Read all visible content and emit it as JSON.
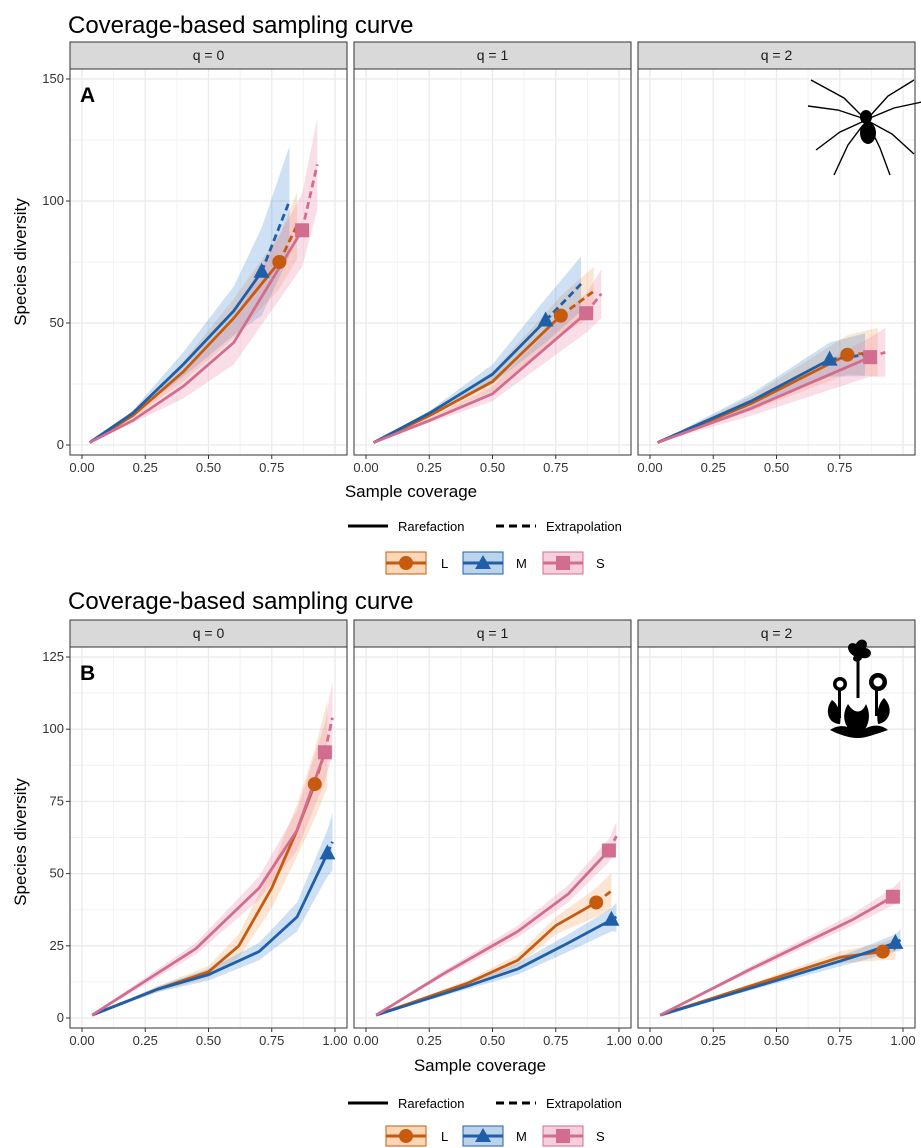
{
  "chart_data": [
    {
      "type": "line",
      "title": "Coverage-based sampling curve",
      "panel_label": "A",
      "xlabel": "Sample coverage",
      "ylabel": "Species diversity",
      "xlim": [
        0,
        1
      ],
      "ylim": [
        0,
        150
      ],
      "x_ticks": [
        "0.00",
        "0.25",
        "0.50",
        "0.75"
      ],
      "y_ticks": [
        "0",
        "50",
        "100",
        "150"
      ],
      "y_tick_values": [
        0,
        50,
        100,
        150
      ],
      "grid": true,
      "method_legend": [
        "Rarefaction",
        "Extrapolation"
      ],
      "facets": [
        {
          "label": "q = 0",
          "series": [
            {
              "name": "L",
              "rarefaction": [
                [
                  0.03,
                  1
                ],
                [
                  0.2,
                  12
                ],
                [
                  0.4,
                  30
                ],
                [
                  0.6,
                  52
                ],
                [
                  0.78,
                  75
                ]
              ],
              "extrapolation": [
                [
                  0.78,
                  75
                ],
                [
                  0.85,
                  90
                ]
              ],
              "observed": [
                0.78,
                75
              ],
              "ci_half": [
                0,
                1,
                4,
                8,
                11
              ]
            },
            {
              "name": "M",
              "rarefaction": [
                [
                  0.03,
                  1
                ],
                [
                  0.2,
                  13
                ],
                [
                  0.4,
                  33
                ],
                [
                  0.6,
                  55
                ],
                [
                  0.71,
                  71
                ]
              ],
              "extrapolation": [
                [
                  0.71,
                  71
                ],
                [
                  0.82,
                  100
                ]
              ],
              "observed": [
                0.71,
                71
              ],
              "ci_half": [
                0,
                1,
                5,
                10,
                18
              ]
            },
            {
              "name": "S",
              "rarefaction": [
                [
                  0.03,
                  1
                ],
                [
                  0.2,
                  10
                ],
                [
                  0.4,
                  24
                ],
                [
                  0.6,
                  42
                ],
                [
                  0.87,
                  88
                ]
              ],
              "extrapolation": [
                [
                  0.87,
                  88
                ],
                [
                  0.93,
                  115
                ]
              ],
              "observed": [
                0.87,
                88
              ],
              "ci_half": [
                0,
                1,
                5,
                9,
                15
              ]
            }
          ]
        },
        {
          "label": "q = 1",
          "series": [
            {
              "name": "L",
              "rarefaction": [
                [
                  0.03,
                  1
                ],
                [
                  0.25,
                  12
                ],
                [
                  0.5,
                  26
                ],
                [
                  0.77,
                  53
                ]
              ],
              "extrapolation": [
                [
                  0.77,
                  53
                ],
                [
                  0.9,
                  63
                ]
              ],
              "observed": [
                0.77,
                53
              ],
              "ci_half": [
                0,
                1,
                4,
                8
              ]
            },
            {
              "name": "M",
              "rarefaction": [
                [
                  0.03,
                  1
                ],
                [
                  0.25,
                  13
                ],
                [
                  0.5,
                  29
                ],
                [
                  0.71,
                  51
                ]
              ],
              "extrapolation": [
                [
                  0.71,
                  51
                ],
                [
                  0.85,
                  66
                ]
              ],
              "observed": [
                0.71,
                51
              ],
              "ci_half": [
                0,
                1,
                4,
                9
              ]
            },
            {
              "name": "S",
              "rarefaction": [
                [
                  0.03,
                  1
                ],
                [
                  0.25,
                  10
                ],
                [
                  0.5,
                  21
                ],
                [
                  0.87,
                  54
                ]
              ],
              "extrapolation": [
                [
                  0.87,
                  54
                ],
                [
                  0.93,
                  62
                ]
              ],
              "observed": [
                0.87,
                54
              ],
              "ci_half": [
                0,
                1,
                3,
                8
              ]
            }
          ]
        },
        {
          "label": "q = 2",
          "series": [
            {
              "name": "L",
              "rarefaction": [
                [
                  0.03,
                  1
                ],
                [
                  0.4,
                  17
                ],
                [
                  0.78,
                  37
                ]
              ],
              "extrapolation": [
                [
                  0.78,
                  37
                ],
                [
                  0.9,
                  38
                ]
              ],
              "observed": [
                0.78,
                37
              ],
              "ci_half": [
                0,
                3,
                8
              ]
            },
            {
              "name": "M",
              "rarefaction": [
                [
                  0.03,
                  1
                ],
                [
                  0.4,
                  18
                ],
                [
                  0.71,
                  35
                ]
              ],
              "extrapolation": [
                [
                  0.71,
                  35
                ],
                [
                  0.85,
                  37
                ]
              ],
              "observed": [
                0.71,
                35
              ],
              "ci_half": [
                0,
                3,
                7
              ]
            },
            {
              "name": "S",
              "rarefaction": [
                [
                  0.03,
                  1
                ],
                [
                  0.4,
                  15
                ],
                [
                  0.87,
                  36
                ]
              ],
              "extrapolation": [
                [
                  0.87,
                  36
                ],
                [
                  0.93,
                  38
                ]
              ],
              "observed": [
                0.87,
                36
              ],
              "ci_half": [
                0,
                3,
                8
              ]
            }
          ]
        }
      ]
    },
    {
      "type": "line",
      "title": "Coverage-based sampling curve",
      "panel_label": "B",
      "xlabel": "Sample coverage",
      "ylabel": "Species diversity",
      "xlim": [
        0,
        1
      ],
      "ylim": [
        0,
        125
      ],
      "x_ticks": [
        "0.00",
        "0.25",
        "0.50",
        "0.75",
        "1.00"
      ],
      "y_ticks": [
        "0",
        "25",
        "50",
        "75",
        "100",
        "125"
      ],
      "y_tick_values": [
        0,
        25,
        50,
        75,
        100,
        125
      ],
      "grid": true,
      "method_legend": [
        "Rarefaction",
        "Extrapolation"
      ],
      "facets": [
        {
          "label": "q = 0",
          "series": [
            {
              "name": "L",
              "rarefaction": [
                [
                  0.04,
                  1
                ],
                [
                  0.3,
                  10
                ],
                [
                  0.5,
                  16
                ],
                [
                  0.62,
                  25
                ],
                [
                  0.75,
                  45
                ],
                [
                  0.85,
                  65
                ],
                [
                  0.92,
                  81
                ]
              ],
              "extrapolation": [
                [
                  0.92,
                  81
                ],
                [
                  0.97,
                  95
                ]
              ],
              "observed": [
                0.92,
                81
              ],
              "ci_half": [
                0,
                1,
                2,
                4,
                7,
                9,
                12
              ]
            },
            {
              "name": "M",
              "rarefaction": [
                [
                  0.04,
                  1
                ],
                [
                  0.3,
                  10
                ],
                [
                  0.5,
                  15
                ],
                [
                  0.7,
                  23
                ],
                [
                  0.85,
                  35
                ],
                [
                  0.97,
                  57
                ]
              ],
              "extrapolation": [
                [
                  0.97,
                  57
                ],
                [
                  0.99,
                  61
                ]
              ],
              "observed": [
                0.97,
                57
              ],
              "ci_half": [
                0,
                1,
                2,
                3,
                5,
                8
              ]
            },
            {
              "name": "S",
              "rarefaction": [
                [
                  0.04,
                  1
                ],
                [
                  0.2,
                  10
                ],
                [
                  0.45,
                  24
                ],
                [
                  0.7,
                  45
                ],
                [
                  0.85,
                  65
                ],
                [
                  0.96,
                  92
                ]
              ],
              "extrapolation": [
                [
                  0.96,
                  92
                ],
                [
                  0.99,
                  104
                ]
              ],
              "observed": [
                0.96,
                92
              ],
              "ci_half": [
                0,
                1,
                2,
                4,
                7,
                10
              ]
            }
          ]
        },
        {
          "label": "q = 1",
          "series": [
            {
              "name": "L",
              "rarefaction": [
                [
                  0.04,
                  1
                ],
                [
                  0.4,
                  12
                ],
                [
                  0.6,
                  20
                ],
                [
                  0.75,
                  32
                ],
                [
                  0.91,
                  40
                ]
              ],
              "extrapolation": [
                [
                  0.91,
                  40
                ],
                [
                  0.97,
                  44
                ]
              ],
              "observed": [
                0.91,
                40
              ],
              "ci_half": [
                0,
                1,
                2,
                3,
                5
              ]
            },
            {
              "name": "M",
              "rarefaction": [
                [
                  0.04,
                  1
                ],
                [
                  0.4,
                  11
                ],
                [
                  0.6,
                  17
                ],
                [
                  0.8,
                  26
                ],
                [
                  0.97,
                  34
                ]
              ],
              "extrapolation": [
                [
                  0.97,
                  34
                ],
                [
                  0.99,
                  35
                ]
              ],
              "observed": [
                0.97,
                34
              ],
              "ci_half": [
                0,
                1,
                2,
                3,
                4
              ]
            },
            {
              "name": "S",
              "rarefaction": [
                [
                  0.04,
                  1
                ],
                [
                  0.3,
                  15
                ],
                [
                  0.6,
                  30
                ],
                [
                  0.8,
                  43
                ],
                [
                  0.96,
                  58
                ]
              ],
              "extrapolation": [
                [
                  0.96,
                  58
                ],
                [
                  0.99,
                  63
                ]
              ],
              "observed": [
                0.96,
                58
              ],
              "ci_half": [
                0,
                1,
                2,
                3,
                4
              ]
            }
          ]
        },
        {
          "label": "q = 2",
          "series": [
            {
              "name": "L",
              "rarefaction": [
                [
                  0.04,
                  1
                ],
                [
                  0.5,
                  14
                ],
                [
                  0.75,
                  21
                ],
                [
                  0.92,
                  23
                ]
              ],
              "extrapolation": [
                [
                  0.92,
                  23
                ],
                [
                  0.97,
                  24
                ]
              ],
              "observed": [
                0.92,
                23
              ],
              "ci_half": [
                0,
                1,
                2,
                3
              ]
            },
            {
              "name": "M",
              "rarefaction": [
                [
                  0.04,
                  1
                ],
                [
                  0.5,
                  13
                ],
                [
                  0.8,
                  21
                ],
                [
                  0.97,
                  26
                ]
              ],
              "extrapolation": [
                [
                  0.97,
                  26
                ],
                [
                  0.99,
                  27
                ]
              ],
              "observed": [
                0.97,
                26
              ],
              "ci_half": [
                0,
                1,
                2,
                3
              ]
            },
            {
              "name": "S",
              "rarefaction": [
                [
                  0.04,
                  1
                ],
                [
                  0.4,
                  17
                ],
                [
                  0.8,
                  34
                ],
                [
                  0.96,
                  42
                ]
              ],
              "extrapolation": [
                [
                  0.96,
                  42
                ],
                [
                  0.99,
                  44
                ]
              ],
              "observed": [
                0.96,
                42
              ],
              "ci_half": [
                0,
                1,
                2,
                3
              ]
            }
          ]
        }
      ]
    }
  ],
  "colors": {
    "L": "#c65a0f",
    "M": "#1f5fa8",
    "S": "#d26d8f",
    "strip_fill": "#d9d9d9",
    "grid": "#ebebeb"
  },
  "icons": {
    "panel_a": "spider-icon",
    "panel_b": "flowering-plant-icon"
  }
}
